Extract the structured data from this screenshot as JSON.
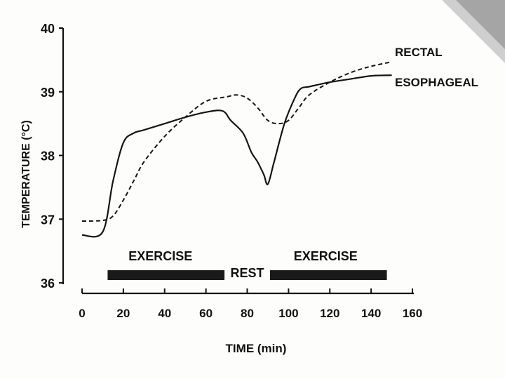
{
  "chart_data": {
    "type": "line",
    "xlabel": "TIME (min)",
    "ylabel": "TEMPERATURE (°C)",
    "xlim": [
      0,
      160
    ],
    "ylim": [
      36,
      40
    ],
    "x_ticks": [
      "0",
      "20",
      "40",
      "60",
      "80",
      "100",
      "120",
      "140",
      "160"
    ],
    "y_ticks": [
      "36",
      "37",
      "38",
      "39",
      "40"
    ],
    "grid": false,
    "series": [
      {
        "name": "RECTAL",
        "style": "dashed",
        "points": [
          [
            0,
            36.97
          ],
          [
            10,
            36.98
          ],
          [
            15,
            37.05
          ],
          [
            20,
            37.3
          ],
          [
            25,
            37.6
          ],
          [
            30,
            37.9
          ],
          [
            40,
            38.3
          ],
          [
            50,
            38.6
          ],
          [
            60,
            38.85
          ],
          [
            70,
            38.92
          ],
          [
            75,
            38.95
          ],
          [
            80,
            38.9
          ],
          [
            85,
            38.75
          ],
          [
            90,
            38.55
          ],
          [
            95,
            38.5
          ],
          [
            100,
            38.55
          ],
          [
            105,
            38.75
          ],
          [
            110,
            38.95
          ],
          [
            120,
            39.15
          ],
          [
            130,
            39.3
          ],
          [
            140,
            39.4
          ],
          [
            150,
            39.47
          ]
        ]
      },
      {
        "name": "ESOPHAGEAL",
        "style": "solid",
        "points": [
          [
            0,
            36.75
          ],
          [
            10,
            36.8
          ],
          [
            15,
            37.6
          ],
          [
            20,
            38.2
          ],
          [
            25,
            38.35
          ],
          [
            30,
            38.4
          ],
          [
            40,
            38.5
          ],
          [
            50,
            38.6
          ],
          [
            60,
            38.68
          ],
          [
            68,
            38.7
          ],
          [
            72,
            38.55
          ],
          [
            78,
            38.35
          ],
          [
            82,
            38.05
          ],
          [
            85,
            37.9
          ],
          [
            88,
            37.7
          ],
          [
            90,
            37.55
          ],
          [
            93,
            37.9
          ],
          [
            98,
            38.5
          ],
          [
            103,
            38.9
          ],
          [
            106,
            39.05
          ],
          [
            110,
            39.08
          ],
          [
            120,
            39.15
          ],
          [
            130,
            39.2
          ],
          [
            140,
            39.25
          ],
          [
            150,
            39.26
          ]
        ]
      }
    ],
    "phases": [
      {
        "label": "EXERCISE",
        "start": 10,
        "end": 70
      },
      {
        "label": "REST",
        "start": 70,
        "end": 90
      },
      {
        "label": "EXERCISE",
        "start": 90,
        "end": 150
      }
    ]
  }
}
